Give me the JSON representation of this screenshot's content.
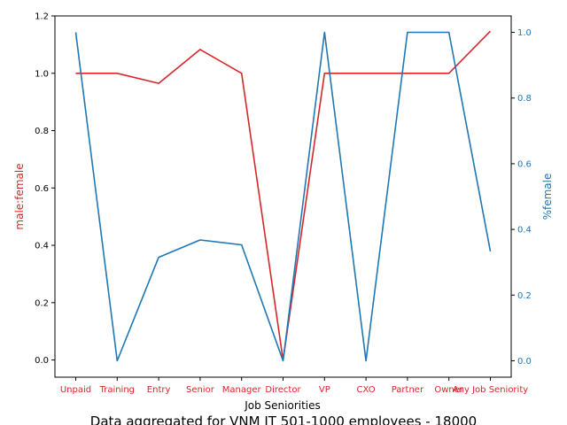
{
  "chart_data": {
    "type": "line",
    "title": "Data aggregated for VNM IT 501-1000 employees - 18000",
    "xlabel": "Job Seniorities",
    "categories": [
      "Unpaid",
      "Training",
      "Entry",
      "Senior",
      "Manager",
      "Director",
      "VP",
      "CXO",
      "Partner",
      "Owner",
      "Any Job Seniority"
    ],
    "grid": false,
    "left_axis": {
      "label": "male:female",
      "color": "#d62728",
      "ylim": [
        -0.06,
        1.2
      ],
      "ticks": [
        "0.0",
        "0.2",
        "0.4",
        "0.6",
        "0.8",
        "1.0",
        "1.2"
      ],
      "tick_values": [
        0,
        0.2,
        0.4,
        0.6,
        0.8,
        1.0,
        1.2
      ]
    },
    "right_axis": {
      "label": "%⁠female",
      "color": "#1f77b4",
      "ylim": [
        -0.05,
        1.05
      ],
      "ticks": [
        "0.0",
        "0.2",
        "0.4",
        "0.6",
        "0.8",
        "1.0"
      ],
      "tick_values": [
        0,
        0.2,
        0.4,
        0.6,
        0.8,
        1.0
      ]
    },
    "series": [
      {
        "axis": "left",
        "color": "#d62728",
        "values": [
          1.0,
          1.0,
          0.965,
          1.083,
          1.0,
          0.0,
          1.0,
          1.0,
          1.0,
          1.0,
          1.147
        ]
      },
      {
        "axis": "right",
        "color": "#1f77b4",
        "values": [
          1.0,
          0.0,
          0.315,
          0.368,
          0.353,
          0.0,
          1.0,
          0.0,
          1.0,
          1.0,
          0.333
        ]
      }
    ]
  }
}
